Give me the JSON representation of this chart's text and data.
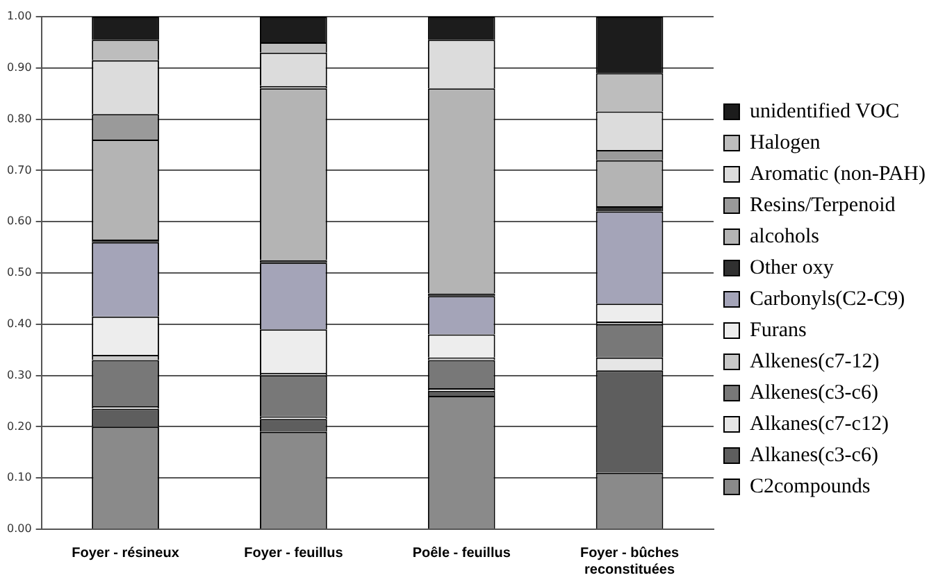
{
  "chart_data": {
    "type": "bar",
    "stacked": true,
    "categories": [
      "Foyer - résineux",
      "Foyer - feuillus",
      "Poêle - feuillus",
      "Foyer - bûches reconstituées"
    ],
    "series": [
      {
        "name": "C2compounds",
        "color": "#8a8a8a",
        "values": [
          0.2,
          0.19,
          0.26,
          0.11
        ]
      },
      {
        "name": "Alkanes(c3-c6)",
        "color": "#5e5e5e",
        "values": [
          0.035,
          0.025,
          0.01,
          0.2
        ]
      },
      {
        "name": "Alkanes(c7-c12)",
        "color": "#e6e6e6",
        "values": [
          0.005,
          0.005,
          0.005,
          0.025
        ]
      },
      {
        "name": "Alkenes(c3-c6)",
        "color": "#787878",
        "values": [
          0.09,
          0.08,
          0.055,
          0.065
        ]
      },
      {
        "name": "Alkenes(c7-12)",
        "color": "#c8c8c8",
        "values": [
          0.01,
          0.005,
          0.005,
          0.005
        ]
      },
      {
        "name": "Furans",
        "color": "#ededed",
        "values": [
          0.075,
          0.085,
          0.045,
          0.035
        ]
      },
      {
        "name": "Carbonyls(C2-C9)",
        "color": "#a4a4b8",
        "values": [
          0.145,
          0.13,
          0.075,
          0.18
        ]
      },
      {
        "name": "Other oxy",
        "color": "#303030",
        "values": [
          0.005,
          0.005,
          0.005,
          0.01
        ]
      },
      {
        "name": "alcohols",
        "color": "#b4b4b4",
        "values": [
          0.195,
          0.335,
          0.4,
          0.09
        ]
      },
      {
        "name": "Resins/Terpenoid",
        "color": "#9a9a9a",
        "values": [
          0.05,
          0.005,
          0,
          0.02
        ]
      },
      {
        "name": "Aromatic (non-PAH)",
        "color": "#dcdcdc",
        "values": [
          0.105,
          0.065,
          0.095,
          0.075
        ]
      },
      {
        "name": "Halogen",
        "color": "#bdbdbd",
        "values": [
          0.04,
          0.02,
          0,
          0.075
        ]
      },
      {
        "name": "unidentified VOC",
        "color": "#1c1c1c",
        "values": [
          0.045,
          0.05,
          0.045,
          0.11
        ]
      }
    ],
    "ylim": [
      0,
      1
    ],
    "yticks": [
      {
        "value": 0,
        "label": "0.00"
      },
      {
        "value": 0.1,
        "label": "0.10"
      },
      {
        "value": 0.2,
        "label": "0.20"
      },
      {
        "value": 0.3,
        "label": "0.30"
      },
      {
        "value": 0.4,
        "label": "0.40"
      },
      {
        "value": 0.5,
        "label": "0.50"
      },
      {
        "value": 0.6,
        "label": "0.60"
      },
      {
        "value": 0.7,
        "label": "0.70"
      },
      {
        "value": 0.8,
        "label": "0.80"
      },
      {
        "value": 0.9,
        "label": "0.90"
      },
      {
        "value": 1,
        "label": "1.00"
      }
    ],
    "grid": "y",
    "legend": "right"
  }
}
